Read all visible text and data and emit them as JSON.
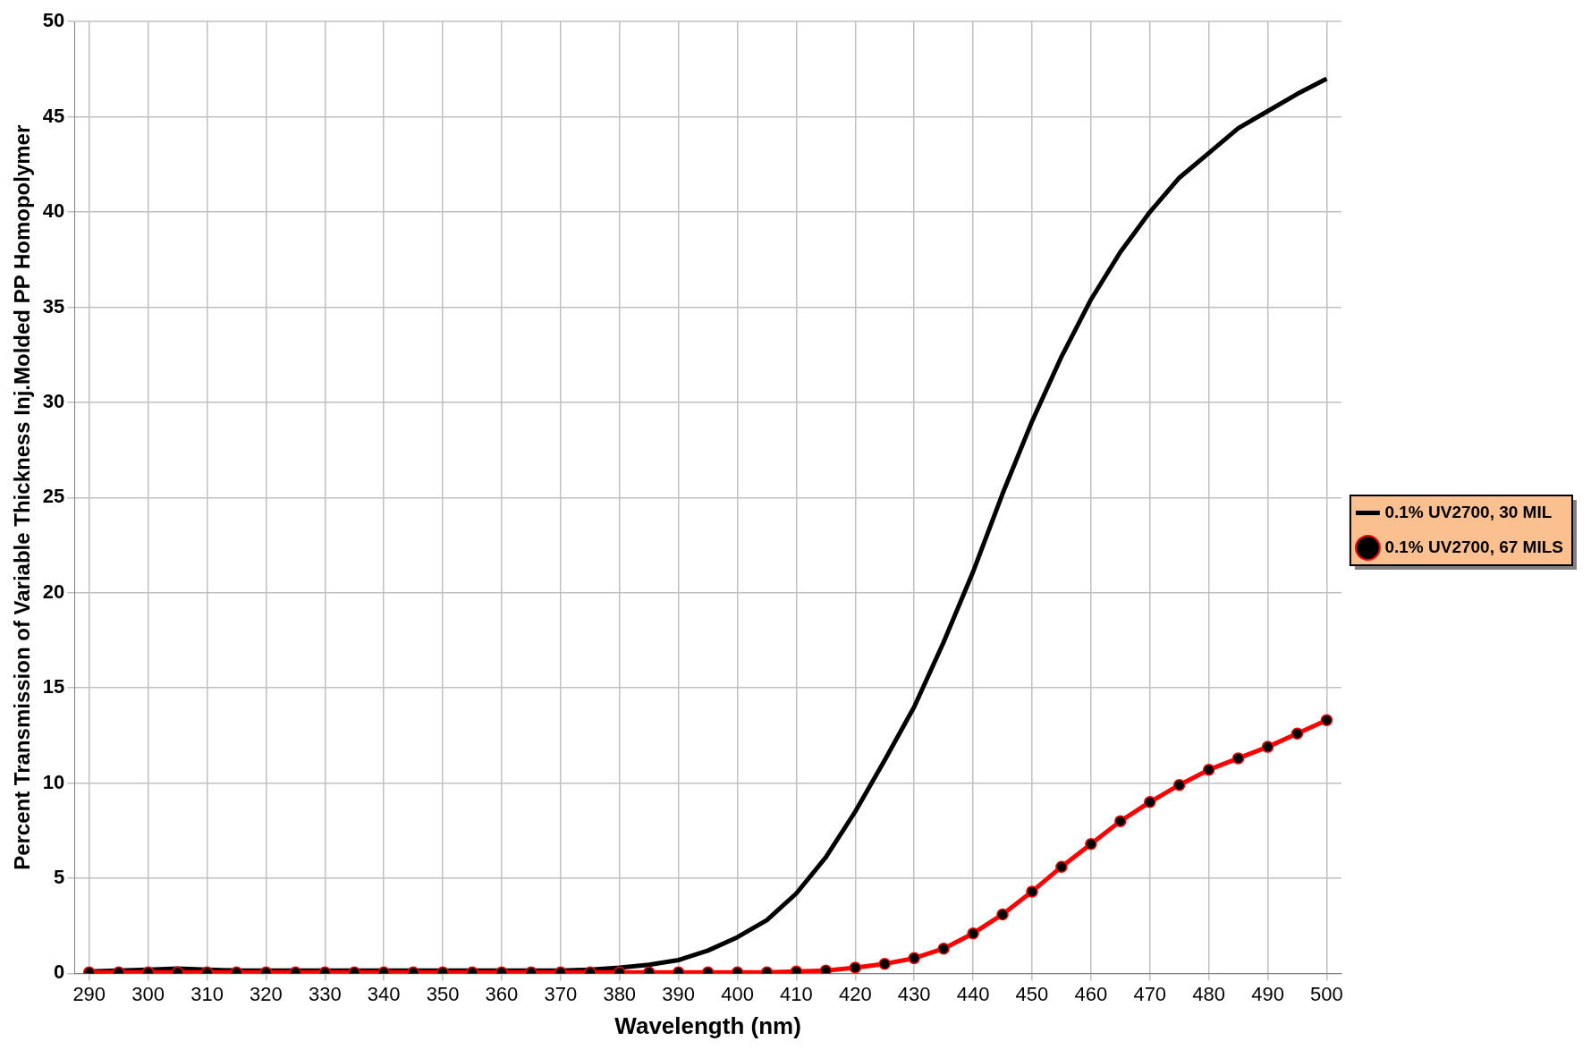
{
  "chart_data": {
    "type": "line",
    "xlabel": "Wavelength (nm)",
    "ylabel": "Percent Transmission of Variable Thickness Inj.Molded PP Homopolymer",
    "x": [
      290,
      295,
      300,
      305,
      310,
      315,
      320,
      325,
      330,
      335,
      340,
      345,
      350,
      355,
      360,
      365,
      370,
      375,
      380,
      385,
      390,
      395,
      400,
      405,
      410,
      415,
      420,
      425,
      430,
      435,
      440,
      445,
      450,
      455,
      460,
      465,
      470,
      475,
      480,
      485,
      490,
      495,
      500
    ],
    "xlim": [
      287.5,
      502.5
    ],
    "xticks": [
      290,
      300,
      310,
      320,
      330,
      340,
      350,
      360,
      370,
      380,
      390,
      400,
      410,
      420,
      430,
      440,
      450,
      460,
      470,
      480,
      490,
      500
    ],
    "ylim": [
      0,
      50
    ],
    "yticks": [
      0,
      5,
      10,
      15,
      20,
      25,
      30,
      35,
      40,
      45,
      50
    ],
    "grid": true,
    "legend": "right",
    "series": [
      {
        "name": "0.1% UV2700, 30 MIL",
        "color": "#000000",
        "marker": "none",
        "values": [
          0.1,
          0.15,
          0.2,
          0.25,
          0.2,
          0.15,
          0.15,
          0.15,
          0.15,
          0.15,
          0.15,
          0.15,
          0.15,
          0.15,
          0.15,
          0.15,
          0.15,
          0.2,
          0.3,
          0.45,
          0.7,
          1.2,
          1.9,
          2.8,
          4.2,
          6.1,
          8.5,
          11.2,
          14,
          17.4,
          21.1,
          25.2,
          29,
          32.4,
          35.4,
          37.9,
          40,
          41.8,
          43.1,
          44.4,
          45.3,
          46.2,
          47
        ]
      },
      {
        "name": "0.1% UV2700, 67 MILS",
        "color": "#ff0000",
        "marker": "circle",
        "values": [
          0.05,
          0.05,
          0.05,
          0.05,
          0.05,
          0.05,
          0.05,
          0.05,
          0.05,
          0.05,
          0.05,
          0.05,
          0.05,
          0.05,
          0.05,
          0.05,
          0.05,
          0.05,
          0.05,
          0.05,
          0.05,
          0.05,
          0.05,
          0.05,
          0.1,
          0.15,
          0.3,
          0.5,
          0.8,
          1.3,
          2.1,
          3.1,
          4.3,
          5.6,
          6.8,
          8,
          9,
          9.9,
          10.7,
          11.3,
          11.9,
          12.6,
          13.3
        ]
      }
    ]
  }
}
